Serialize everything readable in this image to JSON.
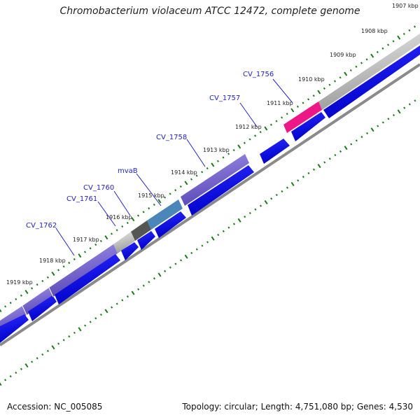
{
  "title": "Chromobacterium violaceum ATCC 12472, complete genome",
  "footer": {
    "accession": "Accession: NC_005085",
    "summary": "Topology: circular; Length: 4,751,080 bp; Genes: 4,530"
  },
  "ticks": [
    {
      "label": "1907 kbp"
    },
    {
      "label": "1908 kbp"
    },
    {
      "label": "1909 kbp"
    },
    {
      "label": "1910 kbp"
    },
    {
      "label": "1911 kbp"
    },
    {
      "label": "1912 kbp"
    },
    {
      "label": "1913 kbp"
    },
    {
      "label": "1914 kbp"
    },
    {
      "label": "1915 kbp"
    },
    {
      "label": "1916 kbp"
    },
    {
      "label": "1917 kbp"
    },
    {
      "label": "1918 kbp"
    },
    {
      "label": "1919 kbp"
    }
  ],
  "gene_labels": [
    "CV_1756",
    "CV_1757",
    "CV_1758",
    "mvaB",
    "CV_1760",
    "CV_1761",
    "CV_1762"
  ],
  "colors": {
    "cds": "#0000ee",
    "purple_feature": "#7b68d6",
    "pink_feature": "#ee1788",
    "grey_feature": "#c8c8c8",
    "dark_feature": "#555555",
    "teal_feature": "#4a86b8",
    "dots": "#1a7a1a",
    "backbone": "#888888"
  }
}
